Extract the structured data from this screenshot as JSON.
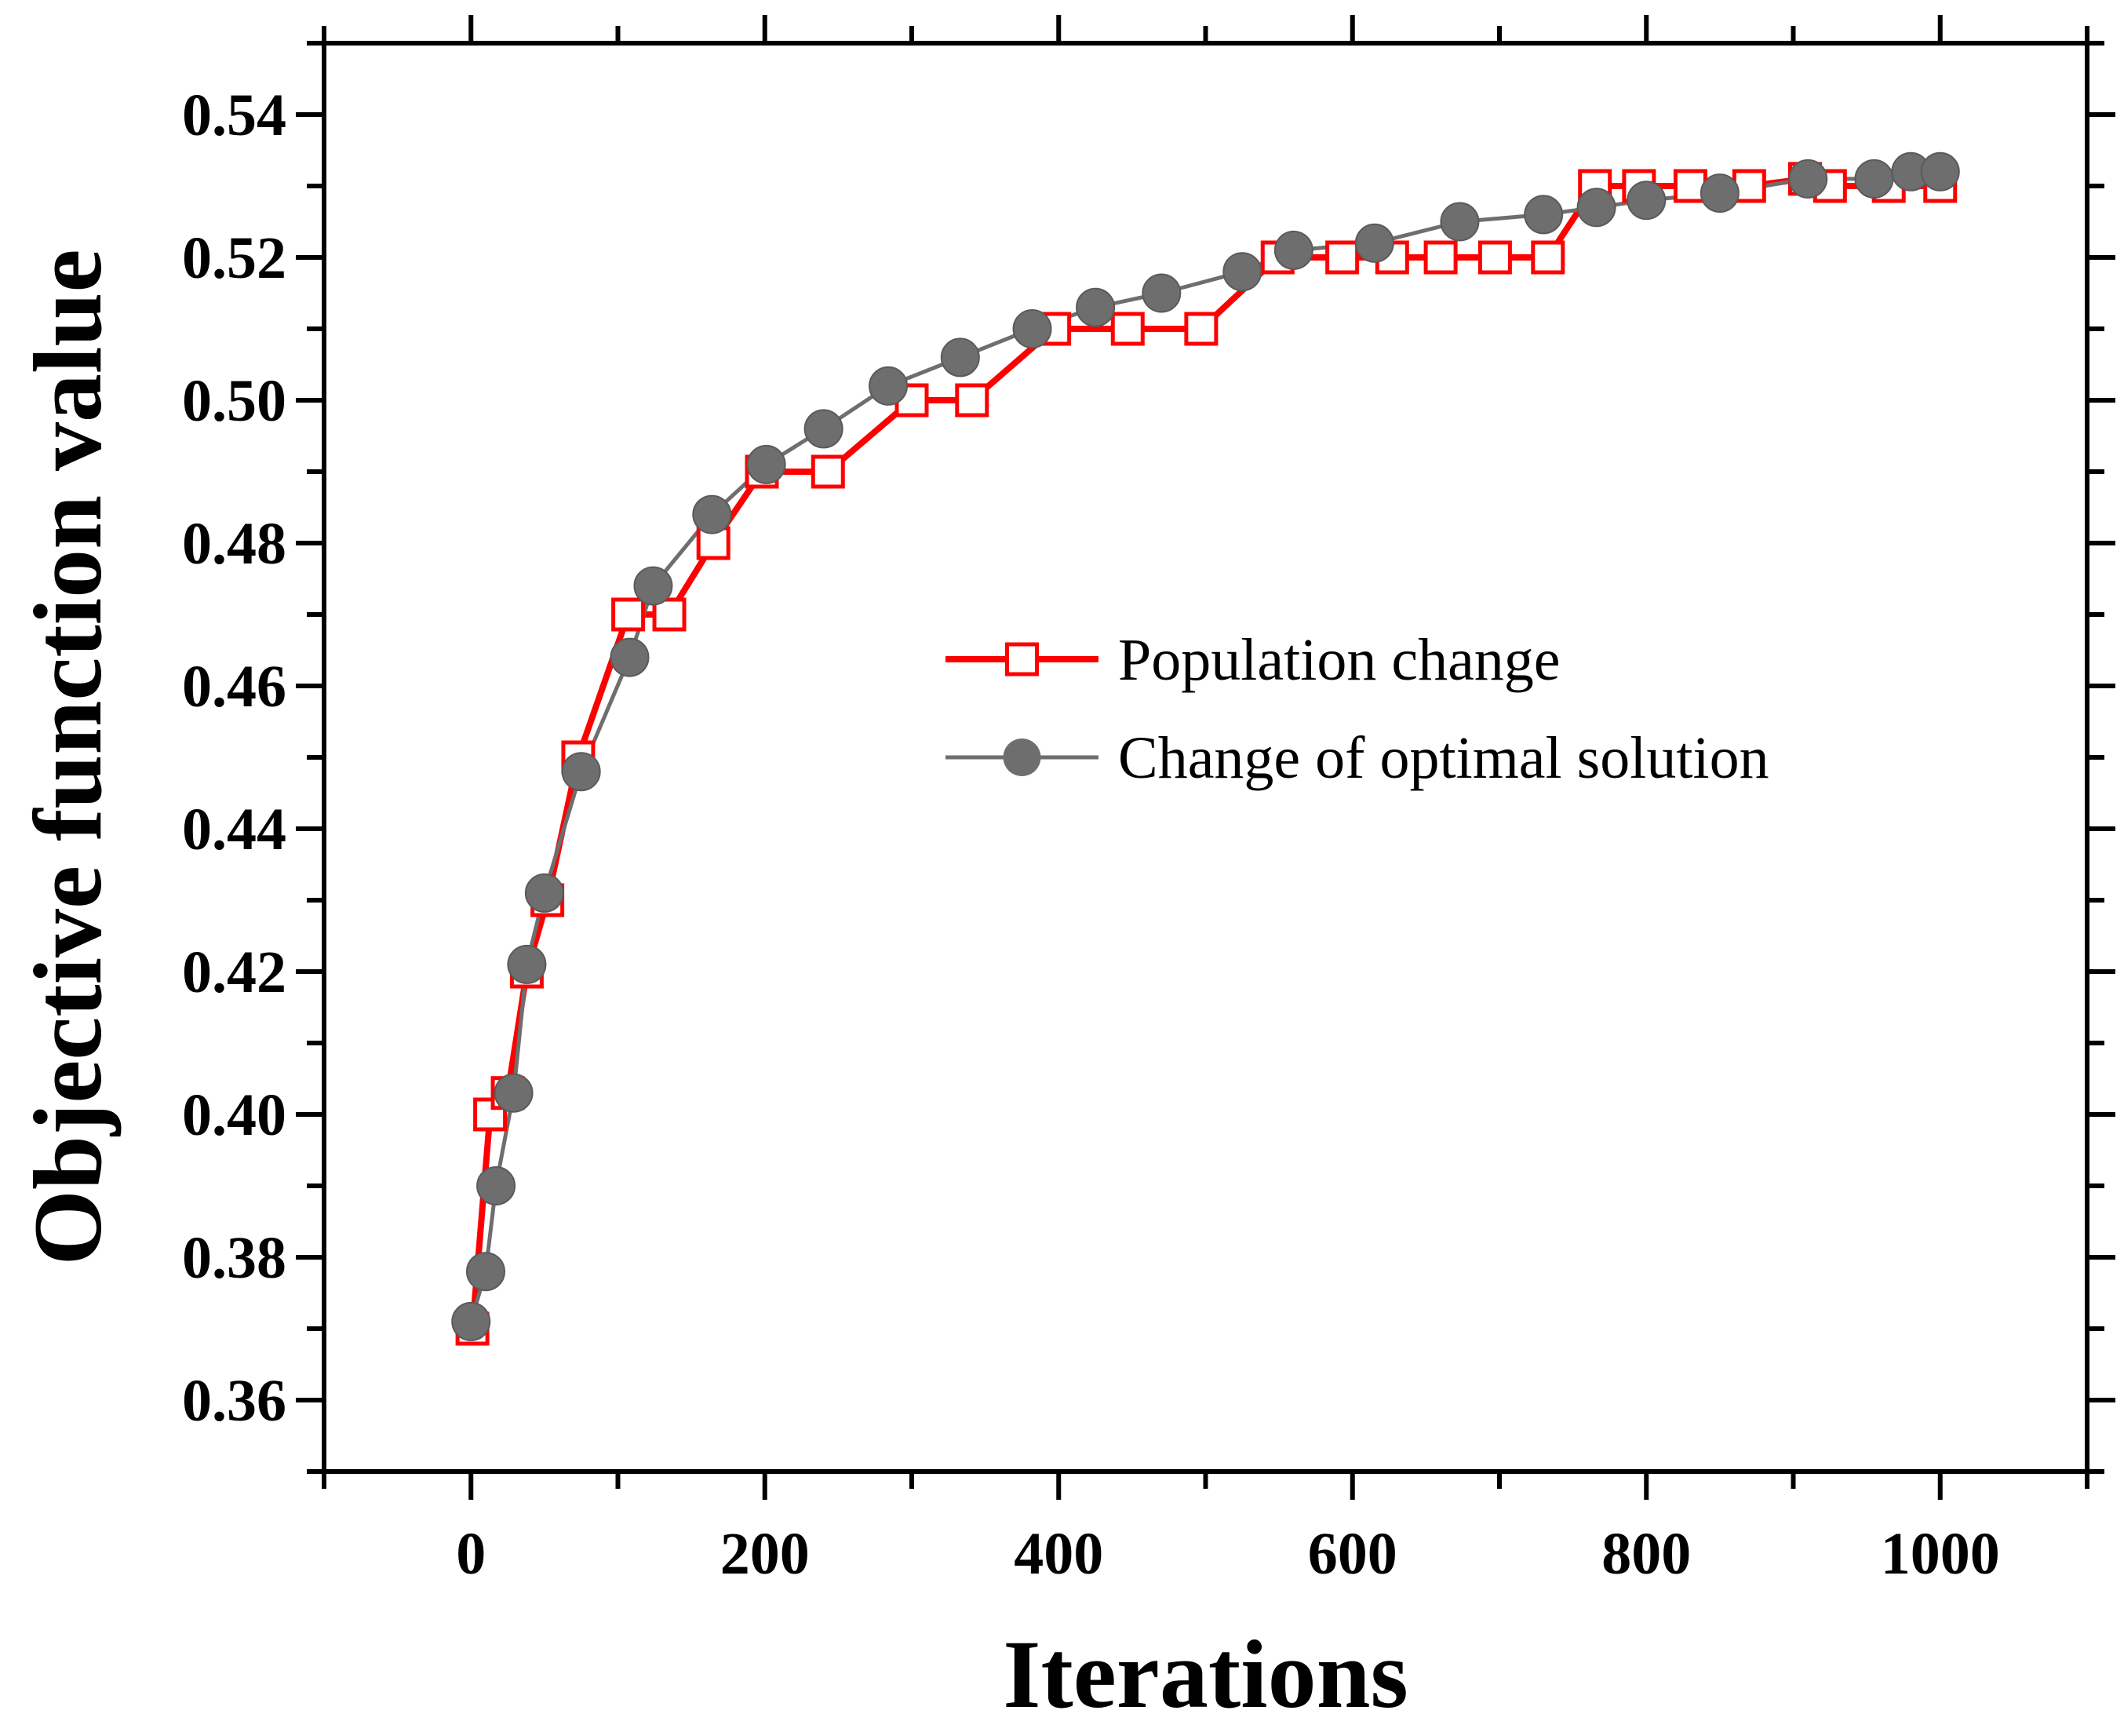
{
  "chart_data": {
    "type": "line",
    "title": "",
    "xlabel": "Iterations",
    "ylabel": "Objective function value",
    "xlim": [
      -100,
      1100
    ],
    "ylim": [
      0.35,
      0.55
    ],
    "xticks": [
      0,
      200,
      400,
      600,
      800,
      1000
    ],
    "xtick_labels": [
      "0",
      "200",
      "400",
      "600",
      "800",
      "1000"
    ],
    "yticks": [
      0.36,
      0.38,
      0.4,
      0.42,
      0.44,
      0.46,
      0.48,
      0.5,
      0.52,
      0.54
    ],
    "ytick_labels": [
      "0.36",
      "0.38",
      "0.40",
      "0.42",
      "0.44",
      "0.46",
      "0.48",
      "0.50",
      "0.52",
      "0.54"
    ],
    "grid": false,
    "legend_position": "center-right",
    "series": [
      {
        "name": "Population change",
        "color": "#ff0000",
        "marker": "open-square",
        "x": [
          1,
          13,
          25,
          38,
          52,
          73,
          107,
          135,
          165,
          198,
          243,
          300,
          341,
          397,
          447,
          497,
          549,
          593,
          627,
          660,
          697,
          733,
          765,
          795,
          830,
          870,
          908,
          925,
          965,
          1000
        ],
        "y": [
          0.37,
          0.4,
          0.403,
          0.42,
          0.43,
          0.45,
          0.47,
          0.47,
          0.48,
          0.49,
          0.49,
          0.5,
          0.5,
          0.51,
          0.51,
          0.51,
          0.52,
          0.52,
          0.52,
          0.52,
          0.52,
          0.52,
          0.53,
          0.53,
          0.53,
          0.53,
          0.531,
          0.53,
          0.53,
          0.53
        ]
      },
      {
        "name": "Change of optimal solution",
        "color": "#6e6e6e",
        "marker": "filled-circle",
        "x": [
          0,
          10,
          17,
          29,
          38,
          50,
          75,
          108,
          124,
          164,
          201,
          240,
          284,
          333,
          382,
          425,
          470,
          525,
          560,
          615,
          673,
          730,
          766,
          800,
          850,
          910,
          955,
          980,
          1000
        ],
        "y": [
          0.371,
          0.378,
          0.39,
          0.403,
          0.421,
          0.431,
          0.448,
          0.464,
          0.474,
          0.484,
          0.491,
          0.496,
          0.502,
          0.506,
          0.51,
          0.513,
          0.515,
          0.518,
          0.521,
          0.522,
          0.525,
          0.526,
          0.527,
          0.528,
          0.529,
          0.531,
          0.531,
          0.532,
          0.532
        ]
      }
    ]
  }
}
